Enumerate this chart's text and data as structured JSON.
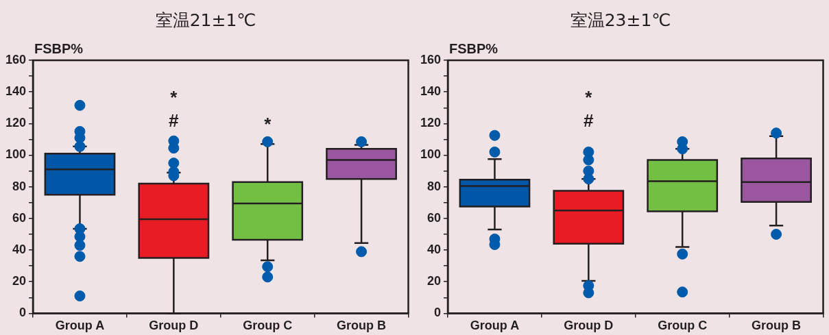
{
  "chart_data": [
    {
      "type": "box",
      "title": "室温21±1℃",
      "ylabel": "FSBP%",
      "categories": [
        "Group A",
        "Group D",
        "Group C",
        "Group B"
      ],
      "colors": [
        "#0057a8",
        "#e81c24",
        "#72bf44",
        "#9b56a0"
      ],
      "marker": "circle",
      "boxes": [
        {
          "low": 53.5,
          "q1": 75,
          "median": 91,
          "q3": 101,
          "high": 105.5,
          "outliers": [
            131.5,
            115,
            111,
            105.5,
            53.5,
            48.5,
            43,
            36,
            11
          ]
        },
        {
          "low": 0,
          "q1": 35,
          "median": 59.5,
          "q3": 82,
          "high": 89,
          "outliers": [
            109,
            104.5,
            95,
            89.5,
            87
          ]
        },
        {
          "low": 33.5,
          "q1": 46.5,
          "median": 69.5,
          "q3": 83,
          "high": 107,
          "outliers": [
            108.5,
            29.5,
            23
          ]
        },
        {
          "low": 44.5,
          "q1": 85,
          "median": 97,
          "q3": 104,
          "high": 106.5,
          "outliers": [
            108.5,
            39
          ]
        }
      ],
      "ylim": [
        0,
        160
      ],
      "yticks": [
        0,
        {
          "value": 10,
          "label": null
        },
        20,
        {
          "value": 30,
          "label": null
        },
        40,
        {
          "value": 50,
          "label": null
        },
        60,
        {
          "value": 70,
          "label": null
        },
        80,
        {
          "value": 90,
          "label": null
        },
        100,
        {
          "value": 110,
          "label": null
        },
        120,
        {
          "value": 130,
          "label": null
        },
        140,
        {
          "value": 150,
          "label": null
        },
        160
      ],
      "annotations": [
        "*",
        "#",
        "*"
      ]
    },
    {
      "type": "box",
      "title": "室温23±1℃",
      "ylabel": "FSBP%",
      "categories": [
        "Group A",
        "Group D",
        "Group C",
        "Group B"
      ],
      "colors": [
        "#0057a8",
        "#e81c24",
        "#72bf44",
        "#9b56a0"
      ],
      "marker": "circle",
      "boxes": [
        {
          "low": 53,
          "q1": 67.5,
          "median": 80.5,
          "q3": 84.5,
          "high": 97.5,
          "outliers": [
            112.5,
            102,
            47,
            43.5
          ]
        },
        {
          "low": 20.5,
          "q1": 44,
          "median": 65,
          "q3": 77.5,
          "high": 85,
          "outliers": [
            102,
            97,
            90,
            85,
            17.5,
            13
          ]
        },
        {
          "low": 42,
          "q1": 64.5,
          "median": 83.5,
          "q3": 97,
          "high": 104,
          "outliers": [
            108.5,
            104,
            37.5,
            13.5
          ]
        },
        {
          "low": 55.5,
          "q1": 70.5,
          "median": 83,
          "q3": 98,
          "high": 112,
          "outliers": [
            114,
            50
          ]
        }
      ],
      "ylim": [
        0,
        160
      ],
      "yticks": [
        0,
        {
          "value": 10,
          "label": null
        },
        20,
        {
          "value": 30,
          "label": null
        },
        40,
        {
          "value": 50,
          "label": null
        },
        60,
        {
          "value": 70,
          "label": null
        },
        80,
        {
          "value": 90,
          "label": null
        },
        100,
        {
          "value": 110,
          "label": null
        },
        120,
        {
          "value": 130,
          "label": null
        },
        140,
        {
          "value": 150,
          "label": null
        },
        160
      ],
      "annotations": [
        "*",
        "#"
      ]
    }
  ]
}
